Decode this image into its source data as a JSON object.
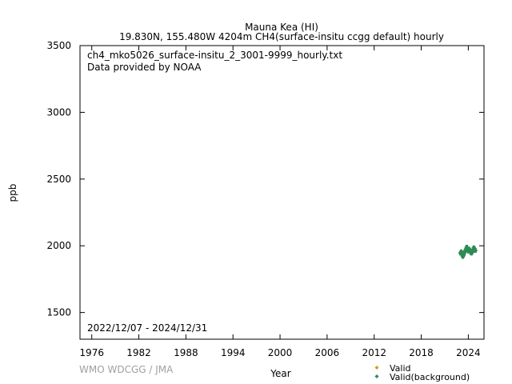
{
  "chart_data": {
    "type": "scatter",
    "title": "Mauna Kea (HI)",
    "subtitle": "19.830N, 155.480W 4204m    CH4(surface-insitu ccgg default) hourly",
    "xlabel": "Year",
    "ylabel": "ppb",
    "xlim": [
      1974.5,
      2026.0
    ],
    "ylim": [
      1300,
      3500
    ],
    "x_ticks": [
      1976,
      1982,
      1988,
      1994,
      2000,
      2006,
      2012,
      2018,
      2024
    ],
    "y_ticks": [
      1500,
      2000,
      2500,
      3000,
      3500
    ],
    "annotation_file": "ch4_mko5026_surface-insitu_2_3001-9999_hourly.txt",
    "annotation_provider": "Data provided by NOAA",
    "date_range": "2022/12/07 - 2024/12/31",
    "grid": false,
    "legend_position": "bottom-right",
    "series": [
      {
        "name": "Valid",
        "color": "#d4a017",
        "marker": "diamond",
        "x": [],
        "y": []
      },
      {
        "name": "Valid(background)",
        "color": "#2e8b57",
        "marker": "diamond",
        "x": [
          2023.0,
          2023.1,
          2023.2,
          2023.3,
          2023.4,
          2023.5,
          2023.6,
          2023.7,
          2023.8,
          2023.9,
          2024.0,
          2024.1,
          2024.2,
          2024.3,
          2024.4,
          2024.5,
          2024.6,
          2024.7,
          2024.8,
          2024.9
        ],
        "y": [
          1945,
          1955,
          1935,
          1920,
          1930,
          1950,
          1960,
          1975,
          1990,
          1970,
          1960,
          1975,
          1965,
          1950,
          1945,
          1955,
          1970,
          1985,
          1975,
          1965
        ],
        "spread": 35
      }
    ]
  },
  "credit": "WMO WDCGG / JMA"
}
